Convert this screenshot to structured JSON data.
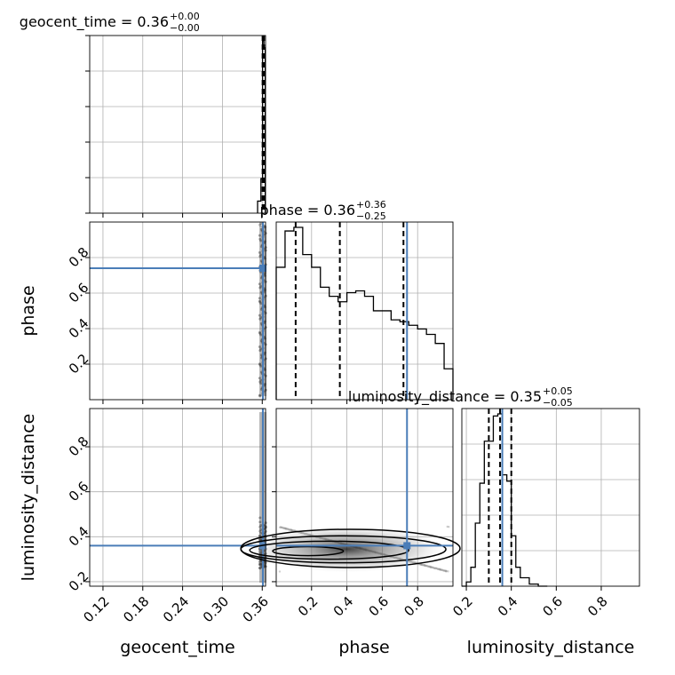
{
  "chart_data": {
    "type": "corner",
    "parameters": [
      "geocent_time",
      "phase",
      "luminosity_distance"
    ],
    "truths": {
      "phase": 0.74,
      "luminosity_distance": 0.36
    },
    "colors": {
      "truth": "#4a7db8",
      "hist": "#000000",
      "grid": "#b0b0b0",
      "contour": "#000000"
    },
    "ranges": {
      "geocent_time": [
        0.1,
        0.365
      ],
      "phase": [
        0.0,
        1.0
      ],
      "luminosity_distance": [
        0.18,
        0.97
      ]
    },
    "ticks": {
      "geocent_time": [
        0.12,
        0.18,
        0.24,
        0.3,
        0.36
      ],
      "phase": [
        0.2,
        0.4,
        0.6,
        0.8
      ],
      "luminosity_distance": [
        0.2,
        0.4,
        0.6,
        0.8
      ]
    },
    "tick_labels": {
      "geocent_time": [
        "0.12",
        "0.18",
        "0.24",
        "0.30",
        "0.36"
      ],
      "phase": [
        "0.2",
        "0.4",
        "0.6",
        "0.8"
      ],
      "luminosity_distance": [
        "0.2",
        "0.4",
        "0.6",
        "0.8"
      ],
      "luminosity_distance_rows": [
        "0.2",
        "0.4",
        "0.6",
        "0.8"
      ]
    },
    "axis_labels": {
      "x0": "geocent_time",
      "x1": "phase",
      "x2": "luminosity_distance",
      "y1": "phase",
      "y2": "luminosity_distance"
    },
    "titles": [
      {
        "param": "geocent_time",
        "text": "geocent_time = 0.36",
        "plus": "+0.00",
        "minus": "−0.00"
      },
      {
        "param": "phase",
        "text": "phase = 0.36",
        "plus": "+0.36",
        "minus": "−0.25"
      },
      {
        "param": "luminosity_distance",
        "text": "luminosity_distance = 0.35",
        "plus": "+0.05",
        "minus": "−0.05"
      }
    ],
    "marginals": {
      "geocent_time": {
        "edges": [
          0.353,
          0.358,
          0.3605,
          0.3625,
          0.3645
        ],
        "counts": [
          0.07,
          0.2,
          1.0,
          0.96
        ],
        "quantiles": [
          0.3605,
          0.3616,
          0.3627
        ]
      },
      "phase": {
        "edges": [
          0.0,
          0.05,
          0.1,
          0.15,
          0.2,
          0.25,
          0.3,
          0.35,
          0.4,
          0.45,
          0.5,
          0.55,
          0.6,
          0.65,
          0.7,
          0.75,
          0.8,
          0.85,
          0.9,
          0.95,
          1.0
        ],
        "counts": [
          0.73,
          0.93,
          0.95,
          0.8,
          0.73,
          0.62,
          0.57,
          0.54,
          0.59,
          0.6,
          0.57,
          0.49,
          0.49,
          0.44,
          0.43,
          0.41,
          0.39,
          0.36,
          0.31,
          0.17
        ],
        "quantiles": [
          0.11,
          0.36,
          0.72
        ]
      },
      "luminosity_distance": {
        "edges": [
          0.18,
          0.2,
          0.22,
          0.24,
          0.26,
          0.28,
          0.3,
          0.32,
          0.34,
          0.36,
          0.38,
          0.4,
          0.42,
          0.44,
          0.46,
          0.48,
          0.5,
          0.52,
          0.54,
          0.56
        ],
        "counts": [
          0.0,
          0.02,
          0.09,
          0.3,
          0.49,
          0.69,
          0.69,
          0.81,
          0.82,
          0.53,
          0.5,
          0.24,
          0.09,
          0.04,
          0.04,
          0.01,
          0.01,
          0.0,
          0.0
        ],
        "quantiles": [
          0.3,
          0.35,
          0.4
        ]
      }
    },
    "contours": [
      {
        "center": [
          0.42,
          0.348
        ],
        "rx": 0.62,
        "ry": 0.085
      },
      {
        "center": [
          0.38,
          0.344
        ],
        "rx": 0.58,
        "ry": 0.06
      },
      {
        "center": [
          0.3,
          0.34
        ],
        "rx": 0.45,
        "ry": 0.04
      },
      {
        "center": [
          0.18,
          0.336
        ],
        "rx": 0.2,
        "ry": 0.02
      }
    ]
  }
}
